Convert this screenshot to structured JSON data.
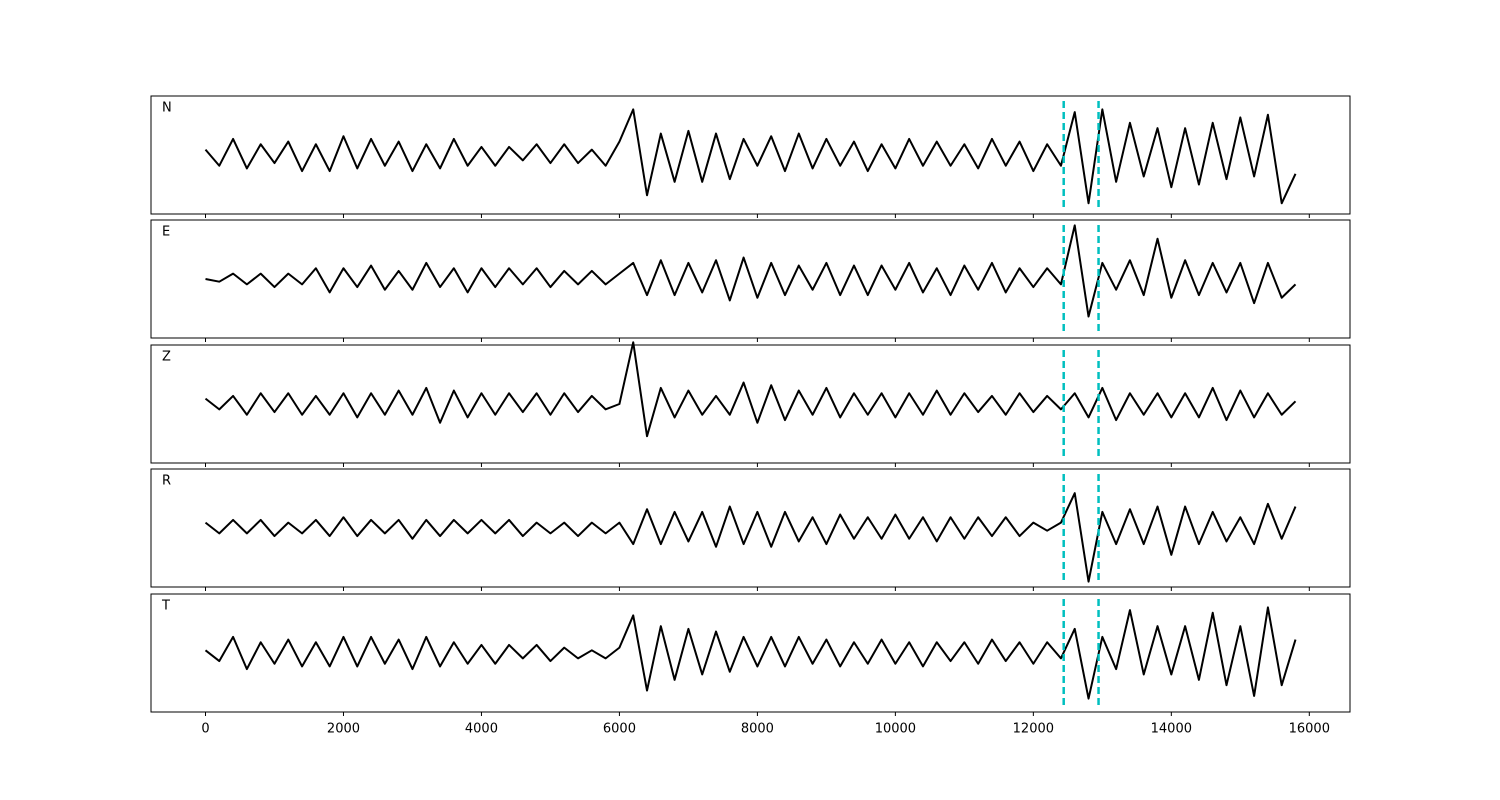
{
  "chart_data": {
    "type": "line",
    "x": [
      0,
      200,
      400,
      600,
      800,
      1000,
      1200,
      1400,
      1600,
      1800,
      2000,
      2200,
      2400,
      2600,
      2800,
      3000,
      3200,
      3400,
      3600,
      3800,
      4000,
      4200,
      4400,
      4600,
      4800,
      5000,
      5200,
      5400,
      5600,
      5800,
      6000,
      6200,
      6400,
      6600,
      6800,
      7000,
      7200,
      7400,
      7600,
      7800,
      8000,
      8200,
      8400,
      8600,
      8800,
      9000,
      9200,
      9400,
      9600,
      9800,
      10000,
      10200,
      10400,
      10600,
      10800,
      11000,
      11200,
      11400,
      11600,
      11800,
      12000,
      12200,
      12400,
      12600,
      12800,
      13000,
      13200,
      13400,
      13600,
      13800,
      14000,
      14200,
      14400,
      14600,
      14800,
      15000,
      15200,
      15400,
      15600,
      15800
    ],
    "xlim": [
      -790,
      16590
    ],
    "xticks": [
      0,
      2000,
      4000,
      6000,
      8000,
      10000,
      12000,
      14000,
      16000
    ],
    "ylim": [
      -1.1,
      1.1
    ],
    "markers": [
      12440,
      12945
    ],
    "marker_color": "#00bfbf",
    "series": [
      {
        "name": "N",
        "color": "#000000",
        "values": [
          0.1,
          -0.2,
          0.3,
          -0.25,
          0.2,
          -0.15,
          0.25,
          -0.3,
          0.2,
          -0.3,
          0.35,
          -0.25,
          0.3,
          -0.2,
          0.25,
          -0.3,
          0.2,
          -0.25,
          0.3,
          -0.2,
          0.15,
          -0.2,
          0.15,
          -0.1,
          0.2,
          -0.15,
          0.2,
          -0.15,
          0.1,
          -0.2,
          0.25,
          0.85,
          -0.75,
          0.4,
          -0.5,
          0.45,
          -0.5,
          0.4,
          -0.45,
          0.3,
          -0.2,
          0.35,
          -0.3,
          0.4,
          -0.25,
          0.3,
          -0.2,
          0.25,
          -0.3,
          0.2,
          -0.25,
          0.3,
          -0.2,
          0.25,
          -0.2,
          0.2,
          -0.25,
          0.3,
          -0.2,
          0.25,
          -0.3,
          0.2,
          -0.2,
          0.8,
          -0.9,
          0.85,
          -0.5,
          0.6,
          -0.4,
          0.5,
          -0.6,
          0.5,
          -0.55,
          0.6,
          -0.45,
          0.7,
          -0.4,
          0.75,
          -0.9,
          -0.35
        ]
      },
      {
        "name": "E",
        "color": "#000000",
        "values": [
          0.0,
          -0.05,
          0.1,
          -0.1,
          0.1,
          -0.15,
          0.1,
          -0.1,
          0.2,
          -0.25,
          0.2,
          -0.15,
          0.25,
          -0.2,
          0.15,
          -0.2,
          0.3,
          -0.15,
          0.2,
          -0.25,
          0.2,
          -0.15,
          0.2,
          -0.1,
          0.2,
          -0.15,
          0.15,
          -0.1,
          0.15,
          -0.1,
          0.1,
          0.3,
          -0.3,
          0.35,
          -0.3,
          0.3,
          -0.25,
          0.35,
          -0.4,
          0.4,
          -0.35,
          0.3,
          -0.3,
          0.25,
          -0.2,
          0.3,
          -0.3,
          0.25,
          -0.3,
          0.25,
          -0.2,
          0.3,
          -0.25,
          0.2,
          -0.3,
          0.25,
          -0.2,
          0.3,
          -0.25,
          0.2,
          -0.15,
          0.2,
          -0.1,
          1.0,
          -0.7,
          0.3,
          -0.2,
          0.35,
          -0.3,
          0.75,
          -0.35,
          0.35,
          -0.3,
          0.3,
          -0.25,
          0.3,
          -0.45,
          0.3,
          -0.35,
          -0.1
        ]
      },
      {
        "name": "Z",
        "color": "#000000",
        "values": [
          0.1,
          -0.1,
          0.15,
          -0.2,
          0.2,
          -0.15,
          0.2,
          -0.2,
          0.15,
          -0.2,
          0.2,
          -0.25,
          0.2,
          -0.2,
          0.25,
          -0.2,
          0.3,
          -0.35,
          0.25,
          -0.25,
          0.2,
          -0.2,
          0.2,
          -0.15,
          0.2,
          -0.2,
          0.2,
          -0.15,
          0.15,
          -0.1,
          0.0,
          1.15,
          -0.6,
          0.3,
          -0.25,
          0.25,
          -0.2,
          0.15,
          -0.2,
          0.4,
          -0.35,
          0.35,
          -0.3,
          0.25,
          -0.2,
          0.3,
          -0.25,
          0.2,
          -0.2,
          0.2,
          -0.25,
          0.2,
          -0.2,
          0.25,
          -0.2,
          0.2,
          -0.15,
          0.15,
          -0.2,
          0.2,
          -0.15,
          0.15,
          -0.1,
          0.2,
          -0.25,
          0.3,
          -0.3,
          0.2,
          -0.2,
          0.2,
          -0.25,
          0.2,
          -0.25,
          0.3,
          -0.3,
          0.25,
          -0.25,
          0.2,
          -0.2,
          0.05
        ]
      },
      {
        "name": "R",
        "color": "#000000",
        "values": [
          0.1,
          -0.1,
          0.15,
          -0.1,
          0.15,
          -0.15,
          0.1,
          -0.1,
          0.15,
          -0.15,
          0.2,
          -0.15,
          0.15,
          -0.1,
          0.15,
          -0.2,
          0.15,
          -0.15,
          0.15,
          -0.1,
          0.15,
          -0.1,
          0.15,
          -0.15,
          0.1,
          -0.1,
          0.1,
          -0.15,
          0.1,
          -0.1,
          0.1,
          -0.3,
          0.35,
          -0.3,
          0.3,
          -0.25,
          0.3,
          -0.35,
          0.4,
          -0.3,
          0.3,
          -0.35,
          0.3,
          -0.25,
          0.2,
          -0.3,
          0.25,
          -0.2,
          0.2,
          -0.2,
          0.25,
          -0.2,
          0.2,
          -0.25,
          0.2,
          -0.2,
          0.2,
          -0.15,
          0.2,
          -0.15,
          0.1,
          -0.05,
          0.1,
          0.65,
          -1.0,
          0.3,
          -0.3,
          0.35,
          -0.3,
          0.4,
          -0.5,
          0.4,
          -0.3,
          0.3,
          -0.25,
          0.2,
          -0.3,
          0.45,
          -0.2,
          0.4
        ]
      },
      {
        "name": "T",
        "color": "#000000",
        "values": [
          0.05,
          -0.15,
          0.3,
          -0.3,
          0.2,
          -0.2,
          0.25,
          -0.25,
          0.2,
          -0.25,
          0.3,
          -0.25,
          0.3,
          -0.2,
          0.25,
          -0.3,
          0.3,
          -0.25,
          0.2,
          -0.2,
          0.15,
          -0.2,
          0.15,
          -0.1,
          0.15,
          -0.15,
          0.1,
          -0.1,
          0.05,
          -0.1,
          0.1,
          0.7,
          -0.7,
          0.5,
          -0.5,
          0.45,
          -0.4,
          0.4,
          -0.35,
          0.3,
          -0.25,
          0.3,
          -0.25,
          0.3,
          -0.2,
          0.25,
          -0.25,
          0.2,
          -0.2,
          0.25,
          -0.2,
          0.2,
          -0.25,
          0.2,
          -0.15,
          0.2,
          -0.2,
          0.25,
          -0.15,
          0.2,
          -0.2,
          0.2,
          -0.1,
          0.45,
          -0.85,
          0.3,
          -0.3,
          0.8,
          -0.4,
          0.5,
          -0.4,
          0.5,
          -0.5,
          0.75,
          -0.6,
          0.5,
          -0.8,
          0.85,
          -0.6,
          0.25
        ]
      }
    ]
  }
}
